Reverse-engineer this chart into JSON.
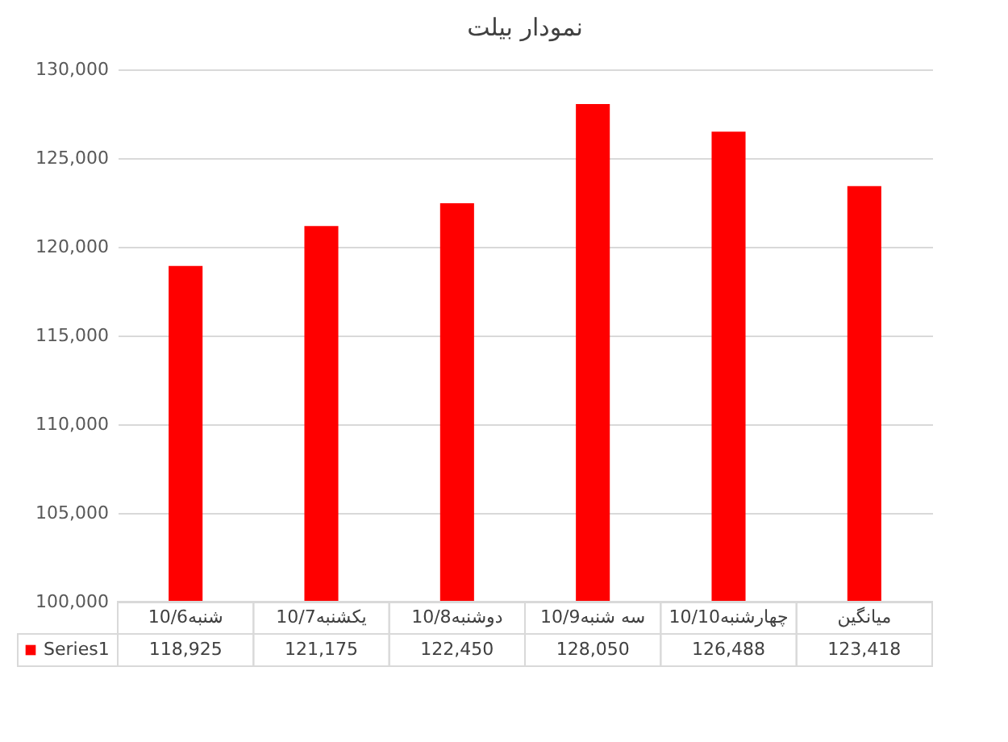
{
  "chart_data": {
    "type": "bar",
    "title": "نمودار بیلت",
    "categories": [
      "شنبه10/6",
      "یکشنبه10/7",
      "دوشنبه10/8",
      "سه شنبه10/9",
      "چهارشنبه10/10",
      "میانگین"
    ],
    "series": [
      {
        "name": "Series1",
        "color": "#ff0000",
        "values": [
          118925,
          121175,
          122450,
          128050,
          126488,
          123418
        ],
        "value_labels": [
          "118,925",
          "121,175",
          "122,450",
          "128,050",
          "126,488",
          "123,418"
        ]
      }
    ],
    "ylim": [
      100000,
      130000
    ],
    "yticks": [
      {
        "value": 100000,
        "label": "100,000"
      },
      {
        "value": 105000,
        "label": "105,000"
      },
      {
        "value": 110000,
        "label": "110,000"
      },
      {
        "value": 115000,
        "label": "115,000"
      },
      {
        "value": 120000,
        "label": "120,000"
      },
      {
        "value": 125000,
        "label": "125,000"
      },
      {
        "value": 130000,
        "label": "130,000"
      }
    ],
    "grid": "y",
    "legend": "bottom"
  }
}
